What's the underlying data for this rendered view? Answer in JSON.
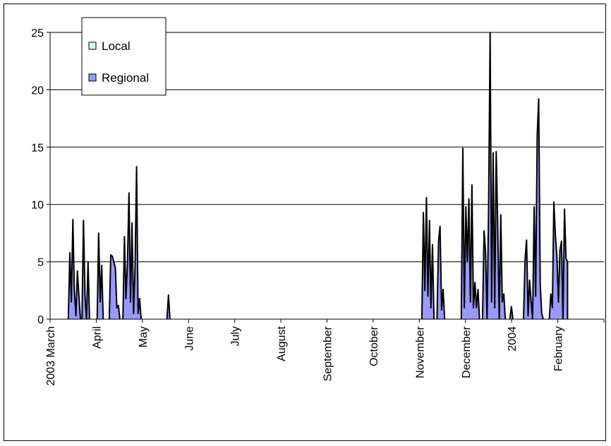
{
  "chart_data": {
    "type": "area",
    "title": "",
    "xlabel": "",
    "ylabel": "",
    "ylim": [
      0,
      25
    ],
    "yticks": [
      0,
      5,
      10,
      15,
      20,
      25
    ],
    "x_tick_labels": [
      "2003 March",
      "April",
      "May",
      "June",
      "July",
      "August",
      "September",
      "October",
      "November",
      "December",
      "2004",
      "February"
    ],
    "legend_placement": "top-left",
    "grid": true,
    "series": [
      {
        "name": "Local",
        "color": "#ccffff",
        "values": []
      },
      {
        "name": "Regional",
        "color": "#9999ff",
        "values": [
          [
            "2003-03-13",
            0
          ],
          [
            "2003-03-14",
            5.8
          ],
          [
            "2003-03-15",
            1.5
          ],
          [
            "2003-03-16",
            8.7
          ],
          [
            "2003-03-17",
            2.5
          ],
          [
            "2003-03-18",
            0.3
          ],
          [
            "2003-03-19",
            4.2
          ],
          [
            "2003-03-20",
            2.0
          ],
          [
            "2003-03-21",
            0
          ],
          [
            "2003-03-22",
            0
          ],
          [
            "2003-03-23",
            8.6
          ],
          [
            "2003-03-24",
            2.0
          ],
          [
            "2003-03-25",
            0
          ],
          [
            "2003-03-26",
            5.0
          ],
          [
            "2003-03-27",
            0
          ],
          [
            "2003-04-01",
            0
          ],
          [
            "2003-04-02",
            7.5
          ],
          [
            "2003-04-03",
            1.5
          ],
          [
            "2003-04-04",
            4.7
          ],
          [
            "2003-04-05",
            0
          ],
          [
            "2003-04-09",
            0
          ],
          [
            "2003-04-10",
            5.6
          ],
          [
            "2003-04-11",
            5.5
          ],
          [
            "2003-04-12",
            5.0
          ],
          [
            "2003-04-13",
            4.5
          ],
          [
            "2003-04-14",
            1.0
          ],
          [
            "2003-04-15",
            1.2
          ],
          [
            "2003-04-16",
            0
          ],
          [
            "2003-04-18",
            0
          ],
          [
            "2003-04-19",
            7.2
          ],
          [
            "2003-04-20",
            1.8
          ],
          [
            "2003-04-21",
            5.0
          ],
          [
            "2003-04-22",
            11.0
          ],
          [
            "2003-04-23",
            1.5
          ],
          [
            "2003-04-24",
            8.4
          ],
          [
            "2003-04-25",
            0.5
          ],
          [
            "2003-04-26",
            4.5
          ],
          [
            "2003-04-27",
            13.3
          ],
          [
            "2003-04-28",
            0.5
          ],
          [
            "2003-04-29",
            1.8
          ],
          [
            "2003-04-30",
            0
          ],
          [
            "2003-05-17",
            0
          ],
          [
            "2003-05-18",
            2.1
          ],
          [
            "2003-05-19",
            0
          ],
          [
            "2003-11-01",
            0
          ],
          [
            "2003-11-02",
            9.3
          ],
          [
            "2003-11-03",
            2.5
          ],
          [
            "2003-11-04",
            10.6
          ],
          [
            "2003-11-05",
            2.0
          ],
          [
            "2003-11-06",
            8.6
          ],
          [
            "2003-11-07",
            1.0
          ],
          [
            "2003-11-08",
            6.5
          ],
          [
            "2003-11-09",
            0
          ],
          [
            "2003-11-11",
            0
          ],
          [
            "2003-11-12",
            6.8
          ],
          [
            "2003-11-13",
            8.1
          ],
          [
            "2003-11-14",
            0.8
          ],
          [
            "2003-11-15",
            2.6
          ],
          [
            "2003-11-16",
            0
          ],
          [
            "2003-11-27",
            0
          ],
          [
            "2003-11-28",
            14.9
          ],
          [
            "2003-11-29",
            1.0
          ],
          [
            "2003-11-30",
            9.8
          ],
          [
            "2003-12-01",
            5.0
          ],
          [
            "2003-12-02",
            10.5
          ],
          [
            "2003-12-03",
            1.5
          ],
          [
            "2003-12-04",
            11.7
          ],
          [
            "2003-12-05",
            1.0
          ],
          [
            "2003-12-06",
            3.2
          ],
          [
            "2003-12-07",
            1.0
          ],
          [
            "2003-12-08",
            2.6
          ],
          [
            "2003-12-09",
            0
          ],
          [
            "2003-12-11",
            0
          ],
          [
            "2003-12-12",
            7.7
          ],
          [
            "2003-12-13",
            5.8
          ],
          [
            "2003-12-14",
            0
          ],
          [
            "2003-12-15",
            9.7
          ],
          [
            "2003-12-16",
            25.0
          ],
          [
            "2003-12-17",
            1.5
          ],
          [
            "2003-12-18",
            14.5
          ],
          [
            "2003-12-19",
            1.0
          ],
          [
            "2003-12-20",
            14.6
          ],
          [
            "2003-12-21",
            8.0
          ],
          [
            "2003-12-22",
            0
          ],
          [
            "2003-12-23",
            9.1
          ],
          [
            "2003-12-24",
            1.5
          ],
          [
            "2003-12-25",
            2.2
          ],
          [
            "2003-12-26",
            0
          ],
          [
            "2003-12-29",
            0
          ],
          [
            "2003-12-30",
            1.1
          ],
          [
            "2003-12-31",
            0
          ],
          [
            "2004-01-07",
            0
          ],
          [
            "2004-01-08",
            5.2
          ],
          [
            "2004-01-09",
            6.9
          ],
          [
            "2004-01-10",
            0.3
          ],
          [
            "2004-01-11",
            3.4
          ],
          [
            "2004-01-12",
            1.5
          ],
          [
            "2004-01-13",
            0
          ],
          [
            "2004-01-14",
            9.8
          ],
          [
            "2004-01-15",
            2.0
          ],
          [
            "2004-01-16",
            16.0
          ],
          [
            "2004-01-17",
            19.2
          ],
          [
            "2004-01-18",
            3.0
          ],
          [
            "2004-01-19",
            0.5
          ],
          [
            "2004-01-20",
            0
          ],
          [
            "2004-01-24",
            0
          ],
          [
            "2004-01-25",
            2.2
          ],
          [
            "2004-01-26",
            1.0
          ],
          [
            "2004-01-27",
            10.2
          ],
          [
            "2004-01-28",
            7.3
          ],
          [
            "2004-01-29",
            5.5
          ],
          [
            "2004-01-30",
            1.5
          ],
          [
            "2004-01-31",
            6.0
          ],
          [
            "2004-02-01",
            6.8
          ],
          [
            "2004-02-02",
            0
          ],
          [
            "2004-02-03",
            9.6
          ],
          [
            "2004-02-04",
            5.3
          ],
          [
            "2004-02-05",
            5.0
          ]
        ]
      }
    ]
  }
}
